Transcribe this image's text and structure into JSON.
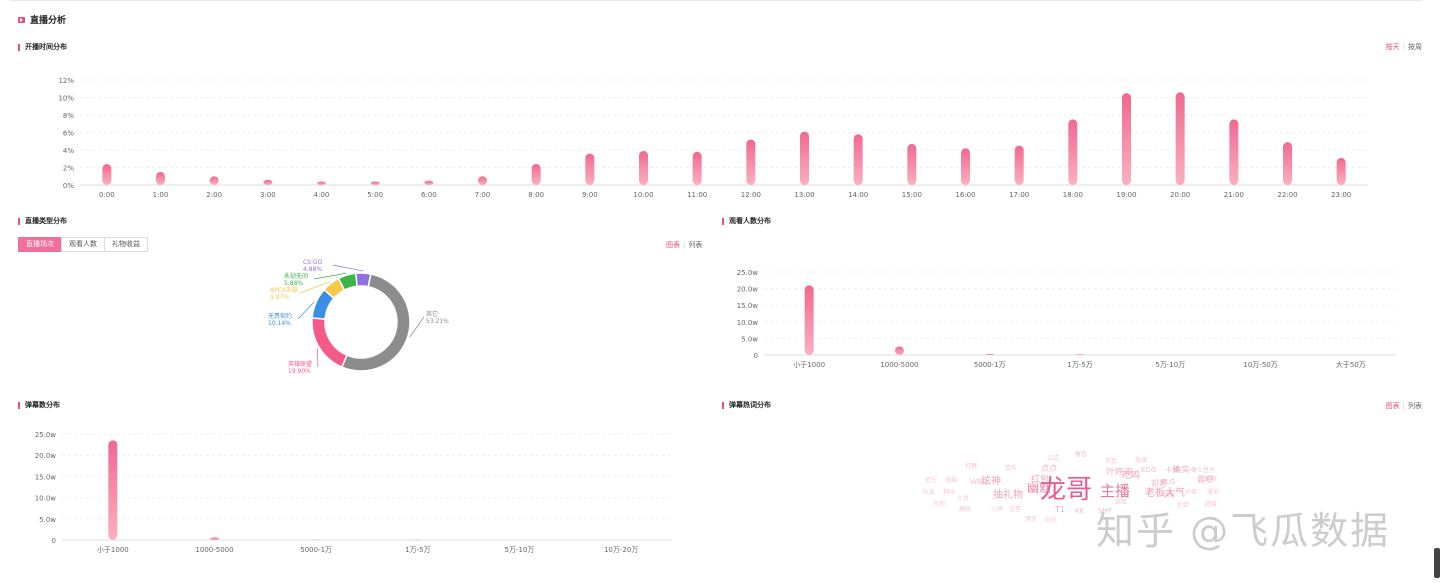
{
  "page": {
    "title": "直播分析"
  },
  "time_section": {
    "title": "开播时间分布",
    "toggle": [
      "按天",
      "按周"
    ],
    "active": 0
  },
  "type_section": {
    "title": "直播类型分布",
    "tabs": [
      "直播场次",
      "观看人数",
      "礼物收益"
    ],
    "active_tab": 0,
    "view_toggle": [
      "图表",
      "列表"
    ]
  },
  "viewers_section": {
    "title": "观看人数分布"
  },
  "danmu_section": {
    "title": "弹幕数分布"
  },
  "hotword_section": {
    "title": "弹幕热词分布",
    "view_toggle": [
      "图表",
      "列表"
    ]
  },
  "watermark": "知乎 @飞瓜数据",
  "colors": {
    "accent": "#e8507a",
    "bar_top": "#f06890",
    "bar_bottom": "#fbb0c0"
  },
  "chart_data": [
    {
      "id": "time",
      "type": "bar",
      "categories": [
        "0:00",
        "1:00",
        "2:00",
        "3:00",
        "4:00",
        "5:00",
        "6:00",
        "7:00",
        "8:00",
        "9:00",
        "10:00",
        "11:00",
        "12:00",
        "13:00",
        "14:00",
        "15:00",
        "16:00",
        "17:00",
        "18:00",
        "19:00",
        "20:00",
        "21:00",
        "22:00",
        "23:00"
      ],
      "values": [
        2.4,
        1.5,
        1.0,
        0.6,
        0.4,
        0.4,
        0.5,
        1.0,
        2.4,
        3.6,
        3.9,
        3.8,
        5.2,
        6.1,
        5.8,
        4.7,
        4.2,
        4.5,
        7.5,
        10.5,
        10.6,
        7.5,
        4.9,
        3.1
      ],
      "yticks": [
        "0%",
        "2%",
        "4%",
        "6%",
        "8%",
        "10%",
        "12%"
      ],
      "ylim": [
        0,
        12
      ]
    },
    {
      "id": "type",
      "type": "pie",
      "slices": [
        {
          "name": "其它",
          "pct": "53.21%",
          "value": 53.21,
          "color": "#8c8c8c"
        },
        {
          "name": "英雄联盟",
          "pct": "19.90%",
          "value": 19.9,
          "color": "#f45a88"
        },
        {
          "name": "无畏契约",
          "pct": "10.14%",
          "value": 10.14,
          "color": "#3a8ee6"
        },
        {
          "name": "APEX英雄",
          "pct": "5.97%",
          "value": 5.97,
          "color": "#f5c84c"
        },
        {
          "name": "永劫无间",
          "pct": "5.88%",
          "value": 5.88,
          "color": "#3ab54a"
        },
        {
          "name": "CS:GO",
          "pct": "4.88%",
          "value": 4.88,
          "color": "#8f70e0"
        }
      ]
    },
    {
      "id": "viewers",
      "type": "bar",
      "categories": [
        "小于1000",
        "1000-5000",
        "5000-1万",
        "1万-5万",
        "5万-10万",
        "10万-50万",
        "大于50万"
      ],
      "values": [
        21.0,
        2.6,
        0.3,
        0.2,
        0,
        0,
        0
      ],
      "yticks": [
        "0",
        "5.0w",
        "10.0w",
        "15.0w",
        "20.0w",
        "25.0w"
      ],
      "ylim": [
        0,
        25
      ]
    },
    {
      "id": "danmu",
      "type": "bar",
      "categories": [
        "小于1000",
        "1000-5000",
        "5000-1万",
        "1万-5万",
        "5万-10万",
        "10万-20万"
      ],
      "values": [
        23.5,
        0.6,
        0.05,
        0.05,
        0,
        0
      ],
      "yticks": [
        "0",
        "5.0w",
        "10.0w",
        "15.0w",
        "20.0w",
        "25.0w"
      ],
      "ylim": [
        0,
        25
      ]
    }
  ],
  "words": [
    {
      "t": "龙哥",
      "s": 26,
      "c": "#e85a8a",
      "o": 1
    },
    {
      "t": "主播",
      "s": 15,
      "c": "#e06a96",
      "o": 0.9
    },
    {
      "t": "幽默",
      "s": 12,
      "c": "#e06a96",
      "o": 0.8
    },
    {
      "t": "老板大气",
      "s": 10,
      "c": "#e87aa0",
      "o": 0.75
    },
    {
      "t": "抽礼物",
      "s": 10,
      "c": "#e87aa0",
      "o": 0.7
    },
    {
      "t": "炫神",
      "s": 10,
      "c": "#e87aa0",
      "o": 0.7
    },
    {
      "t": "吃鸡",
      "s": 9,
      "c": "#e87aa0",
      "o": 0.7
    },
    {
      "t": "红包",
      "s": 9,
      "c": "#e87aa0",
      "o": 0.7
    },
    {
      "t": "叶咚鸡",
      "s": 9,
      "c": "#e87aa0",
      "o": 0.6
    },
    {
      "t": "点点",
      "s": 8,
      "c": "#e87aa0",
      "o": 0.6
    },
    {
      "t": "邦邦",
      "s": 8,
      "c": "#e87aa0",
      "o": 0.6
    },
    {
      "t": "确实",
      "s": 8,
      "c": "#e87aa0",
      "o": 0.6
    },
    {
      "t": "晨吧",
      "s": 8,
      "c": "#e87aa0",
      "o": 0.6
    },
    {
      "t": "T1",
      "s": 8,
      "c": "#e87aa0",
      "o": 0.6
    },
    {
      "t": "KK",
      "s": 7,
      "c": "#e87aa0",
      "o": 0.55
    },
    {
      "t": "SHY",
      "s": 7,
      "c": "#e87aa0",
      "o": 0.55
    },
    {
      "t": "WBG",
      "s": 7,
      "c": "#e87aa0",
      "o": 0.5
    },
    {
      "t": "EDG",
      "s": 7,
      "c": "#e87aa0",
      "o": 0.5
    },
    {
      "t": "BLG",
      "s": 7,
      "c": "#e87aa0",
      "o": 0.5
    },
    {
      "t": "卡邦",
      "s": 7,
      "c": "#e87aa0",
      "o": 0.5
    },
    {
      "t": "小捷土豆子",
      "s": 6,
      "c": "#e87aa0",
      "o": 0.5
    },
    {
      "t": "闪烁",
      "s": 6,
      "c": "#e87aa0",
      "o": 0.5
    },
    {
      "t": "打野",
      "s": 6,
      "c": "#e87aa0",
      "o": 0.5
    },
    {
      "t": "京东",
      "s": 6,
      "c": "#e87aa0",
      "o": 0.5
    },
    {
      "t": "公式",
      "s": 6,
      "c": "#e87aa0",
      "o": 0.5
    },
    {
      "t": "留言",
      "s": 6,
      "c": "#e87aa0",
      "o": 0.5
    },
    {
      "t": "瓦瓦",
      "s": 6,
      "c": "#e87aa0",
      "o": 0.45
    },
    {
      "t": "加油",
      "s": 6,
      "c": "#e87aa0",
      "o": 0.45
    },
    {
      "t": "冠军",
      "s": 6,
      "c": "#e87aa0",
      "o": 0.45
    },
    {
      "t": "电脑",
      "s": 6,
      "c": "#e87aa0",
      "o": 0.45
    },
    {
      "t": "队友",
      "s": 6,
      "c": "#e87aa0",
      "o": 0.45
    },
    {
      "t": "狗叫",
      "s": 6,
      "c": "#e87aa0",
      "o": 0.45
    },
    {
      "t": "土豆",
      "s": 6,
      "c": "#e87aa0",
      "o": 0.45
    },
    {
      "t": "大狗",
      "s": 6,
      "c": "#e87aa0",
      "o": 0.45
    },
    {
      "t": "鹿晗",
      "s": 6,
      "c": "#e87aa0",
      "o": 0.45
    },
    {
      "t": "小虎",
      "s": 6,
      "c": "#e87aa0",
      "o": 0.45
    },
    {
      "t": "左手",
      "s": 6,
      "c": "#e87aa0",
      "o": 0.45
    },
    {
      "t": "湮灭",
      "s": 6,
      "c": "#e87aa0",
      "o": 0.45
    },
    {
      "t": "阳光",
      "s": 6,
      "c": "#e87aa0",
      "o": 0.45
    },
    {
      "t": "爸斯",
      "s": 6,
      "c": "#e87aa0",
      "o": 0.45
    },
    {
      "t": "孙亚",
      "s": 6,
      "c": "#e87aa0",
      "o": 0.45
    },
    {
      "t": "凝地",
      "s": 6,
      "c": "#e87aa0",
      "o": 0.45
    },
    {
      "t": "别哭",
      "s": 6,
      "c": "#e87aa0",
      "o": 0.45
    },
    {
      "t": "超级",
      "s": 6,
      "c": "#e87aa0",
      "o": 0.45
    },
    {
      "t": "瑶瑶",
      "s": 6,
      "c": "#e87aa0",
      "o": 0.45
    }
  ]
}
